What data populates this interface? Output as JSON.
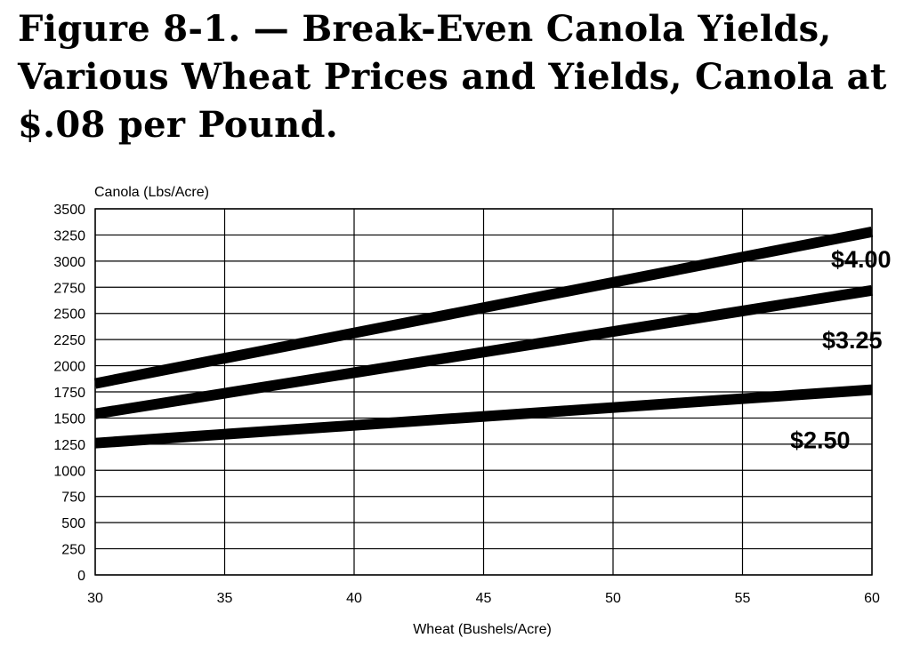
{
  "chart_data": {
    "type": "line",
    "title": "Figure 8-1. — Break-Even Canola Yields, Various Wheat Prices and Yields, Canola at $.08 per Pound.",
    "xlabel": "Wheat (Bushels/Acre)",
    "ylabel": "Canola (Lbs/Acre)",
    "xlim": [
      30,
      60
    ],
    "ylim": [
      0,
      3500
    ],
    "x_ticks": [
      30,
      35,
      40,
      45,
      50,
      55,
      60
    ],
    "y_ticks": [
      0,
      250,
      500,
      750,
      1000,
      1250,
      1500,
      1750,
      2000,
      2250,
      2500,
      2750,
      3000,
      3250,
      3500
    ],
    "grid": true,
    "legend": "none",
    "series": [
      {
        "name": "$4.00",
        "x": [
          30,
          60
        ],
        "y": [
          1830,
          3280
        ]
      },
      {
        "name": "$3.25",
        "x": [
          30,
          60
        ],
        "y": [
          1540,
          2720
        ]
      },
      {
        "name": "$2.50",
        "x": [
          30,
          60
        ],
        "y": [
          1260,
          1770
        ]
      }
    ],
    "colors": {
      "line": "#000000",
      "grid": "#000000",
      "background": "#ffffff"
    }
  }
}
